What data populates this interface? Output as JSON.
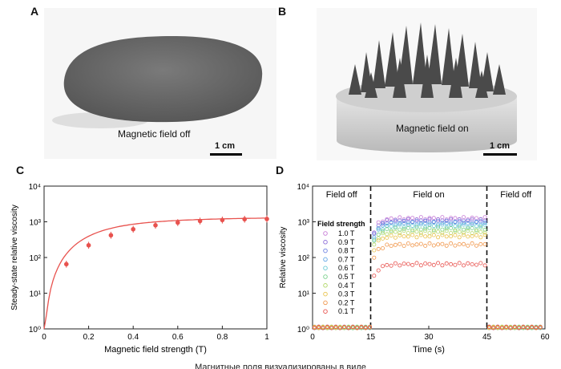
{
  "panels": {
    "a": {
      "letter": "A",
      "caption": "Magnetic field off",
      "scale": "1 cm"
    },
    "b": {
      "letter": "B",
      "caption": "Magnetic field on",
      "scale": "1 cm"
    },
    "c": {
      "letter": "C"
    },
    "d": {
      "letter": "D"
    }
  },
  "bottom_caption": "Магнитные поля визуализированы в виде",
  "chart_data": [
    {
      "panel": "C",
      "type": "scatter",
      "xlabel": "Magnetic field strength (T)",
      "ylabel": "Steady-state relative viscosity",
      "xlim": [
        0,
        1
      ],
      "ylim": [
        1,
        10000
      ],
      "yscale": "log",
      "xticks": [
        "0",
        "0.2",
        "0.4",
        "0.6",
        "0.8",
        "1"
      ],
      "yticks": [
        "10⁰",
        "10¹",
        "10²",
        "10³",
        "10⁴"
      ],
      "x": [
        0.1,
        0.2,
        0.3,
        0.4,
        0.5,
        0.6,
        0.7,
        0.8,
        0.9,
        1.0
      ],
      "y": [
        65,
        220,
        420,
        620,
        800,
        950,
        1050,
        1120,
        1180,
        1200
      ],
      "fit_line": true,
      "color": "#e8524e"
    },
    {
      "panel": "D",
      "type": "line",
      "xlabel": "Time (s)",
      "ylabel": "Relative viscosity",
      "xlim": [
        0,
        60
      ],
      "ylim": [
        1,
        10000
      ],
      "yscale": "log",
      "xticks": [
        "0",
        "15",
        "30",
        "45",
        "60"
      ],
      "yticks": [
        "10⁰",
        "10¹",
        "10²",
        "10³",
        "10⁴"
      ],
      "regions": [
        "Field off",
        "Field on",
        "Field off"
      ],
      "switch_times": [
        15,
        45
      ],
      "legend_title": "Field strength",
      "legend_position": "left",
      "series": [
        {
          "name": "1.0 T",
          "plateau": 1250,
          "color": "#c77bd6"
        },
        {
          "name": "0.9 T",
          "plateau": 1100,
          "color": "#8e6fd8"
        },
        {
          "name": "0.8 T",
          "plateau": 1000,
          "color": "#6a7ee0"
        },
        {
          "name": "0.7 T",
          "plateau": 900,
          "color": "#5fa4e6"
        },
        {
          "name": "0.6 T",
          "plateau": 780,
          "color": "#69c9d4"
        },
        {
          "name": "0.5 T",
          "plateau": 640,
          "color": "#78d08a"
        },
        {
          "name": "0.4 T",
          "plateau": 520,
          "color": "#b2d86a"
        },
        {
          "name": "0.3 T",
          "plateau": 400,
          "color": "#e8c24a"
        },
        {
          "name": "0.2 T",
          "plateau": 230,
          "color": "#f0964a"
        },
        {
          "name": "0.1 T",
          "plateau": 65,
          "color": "#e8524e"
        }
      ]
    }
  ]
}
